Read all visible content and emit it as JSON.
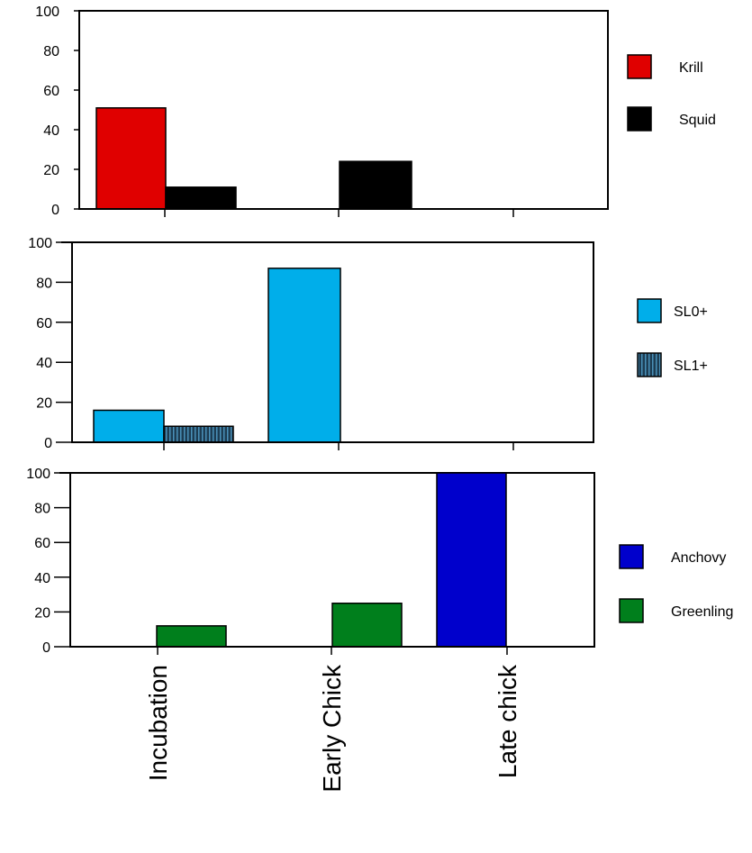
{
  "chart_data": [
    {
      "type": "bar",
      "categories": [
        "Incubation",
        "Early Chick",
        "Late chick"
      ],
      "ylim": [
        0,
        100
      ],
      "yticks": [
        0,
        20,
        40,
        60,
        80,
        100
      ],
      "legend_position": "right",
      "series": [
        {
          "name": "Krill",
          "values": [
            51,
            0,
            0
          ],
          "color": "#e00000"
        },
        {
          "name": "Squid",
          "values": [
            11,
            24,
            0
          ],
          "color": "#000000"
        }
      ]
    },
    {
      "type": "bar",
      "categories": [
        "Incubation",
        "Early Chick",
        "Late chick"
      ],
      "ylim": [
        0,
        100
      ],
      "yticks": [
        0,
        20,
        40,
        60,
        80,
        100
      ],
      "legend_position": "right",
      "series": [
        {
          "name": "SL0+",
          "values": [
            16,
            87,
            0
          ],
          "color": "#00aeea"
        },
        {
          "name": "SL1+",
          "values": [
            8,
            0,
            0
          ],
          "color": "#1c3c52",
          "pattern": "vertical-stripes"
        }
      ]
    },
    {
      "type": "bar",
      "categories": [
        "Incubation",
        "Early Chick",
        "Late chick"
      ],
      "ylim": [
        0,
        100
      ],
      "yticks": [
        0,
        20,
        40,
        60,
        80,
        100
      ],
      "legend_position": "right",
      "series": [
        {
          "name": "Anchovy",
          "values": [
            0,
            0,
            100
          ],
          "color": "#0000cc"
        },
        {
          "name": "Greenling",
          "values": [
            12,
            25,
            0
          ],
          "color": "#007f1c"
        }
      ]
    }
  ]
}
